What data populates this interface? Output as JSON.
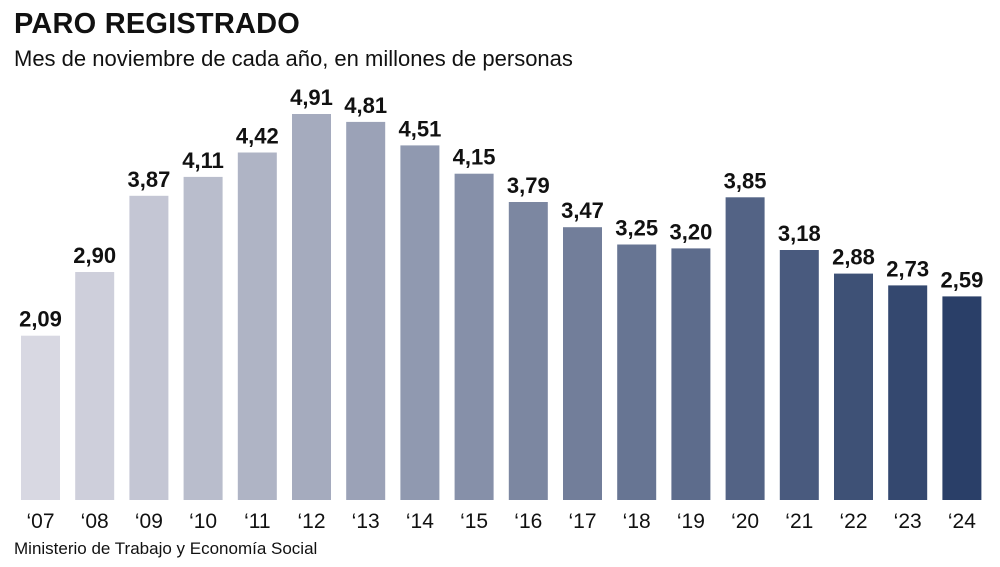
{
  "header": {
    "title": "PARO REGISTRADO",
    "subtitle": "Mes de noviembre de cada año, en millones de personas"
  },
  "footer": {
    "source": "Ministerio de Trabajo y Economía Social"
  },
  "colors": {
    "bar_start": "#d8d8e2",
    "bar_end": "#2a3f68",
    "text": "#111111"
  },
  "chart_data": {
    "type": "bar",
    "title": "PARO REGISTRADO",
    "subtitle": "Mes de noviembre de cada año, en millones de personas",
    "categories": [
      "‘07",
      "‘08",
      "‘09",
      "‘10",
      "‘11",
      "‘12",
      "‘13",
      "‘14",
      "‘15",
      "‘16",
      "‘17",
      "‘18",
      "‘19",
      "‘20",
      "‘21",
      "‘22",
      "‘23",
      "‘24"
    ],
    "values": [
      2.09,
      2.9,
      3.87,
      4.11,
      4.42,
      4.91,
      4.81,
      4.51,
      4.15,
      3.79,
      3.47,
      3.25,
      3.2,
      3.85,
      3.18,
      2.88,
      2.73,
      2.59
    ],
    "value_labels": [
      "2,09",
      "2,90",
      "3,87",
      "4,11",
      "4,42",
      "4,91",
      "4,81",
      "4,51",
      "4,15",
      "3,79",
      "3,47",
      "3,25",
      "3,20",
      "3,85",
      "3,18",
      "2,88",
      "2,73",
      "2,59"
    ],
    "ylim": [
      0,
      4.91
    ],
    "xlabel": "",
    "ylabel": "",
    "grid": false,
    "legend": "none"
  }
}
